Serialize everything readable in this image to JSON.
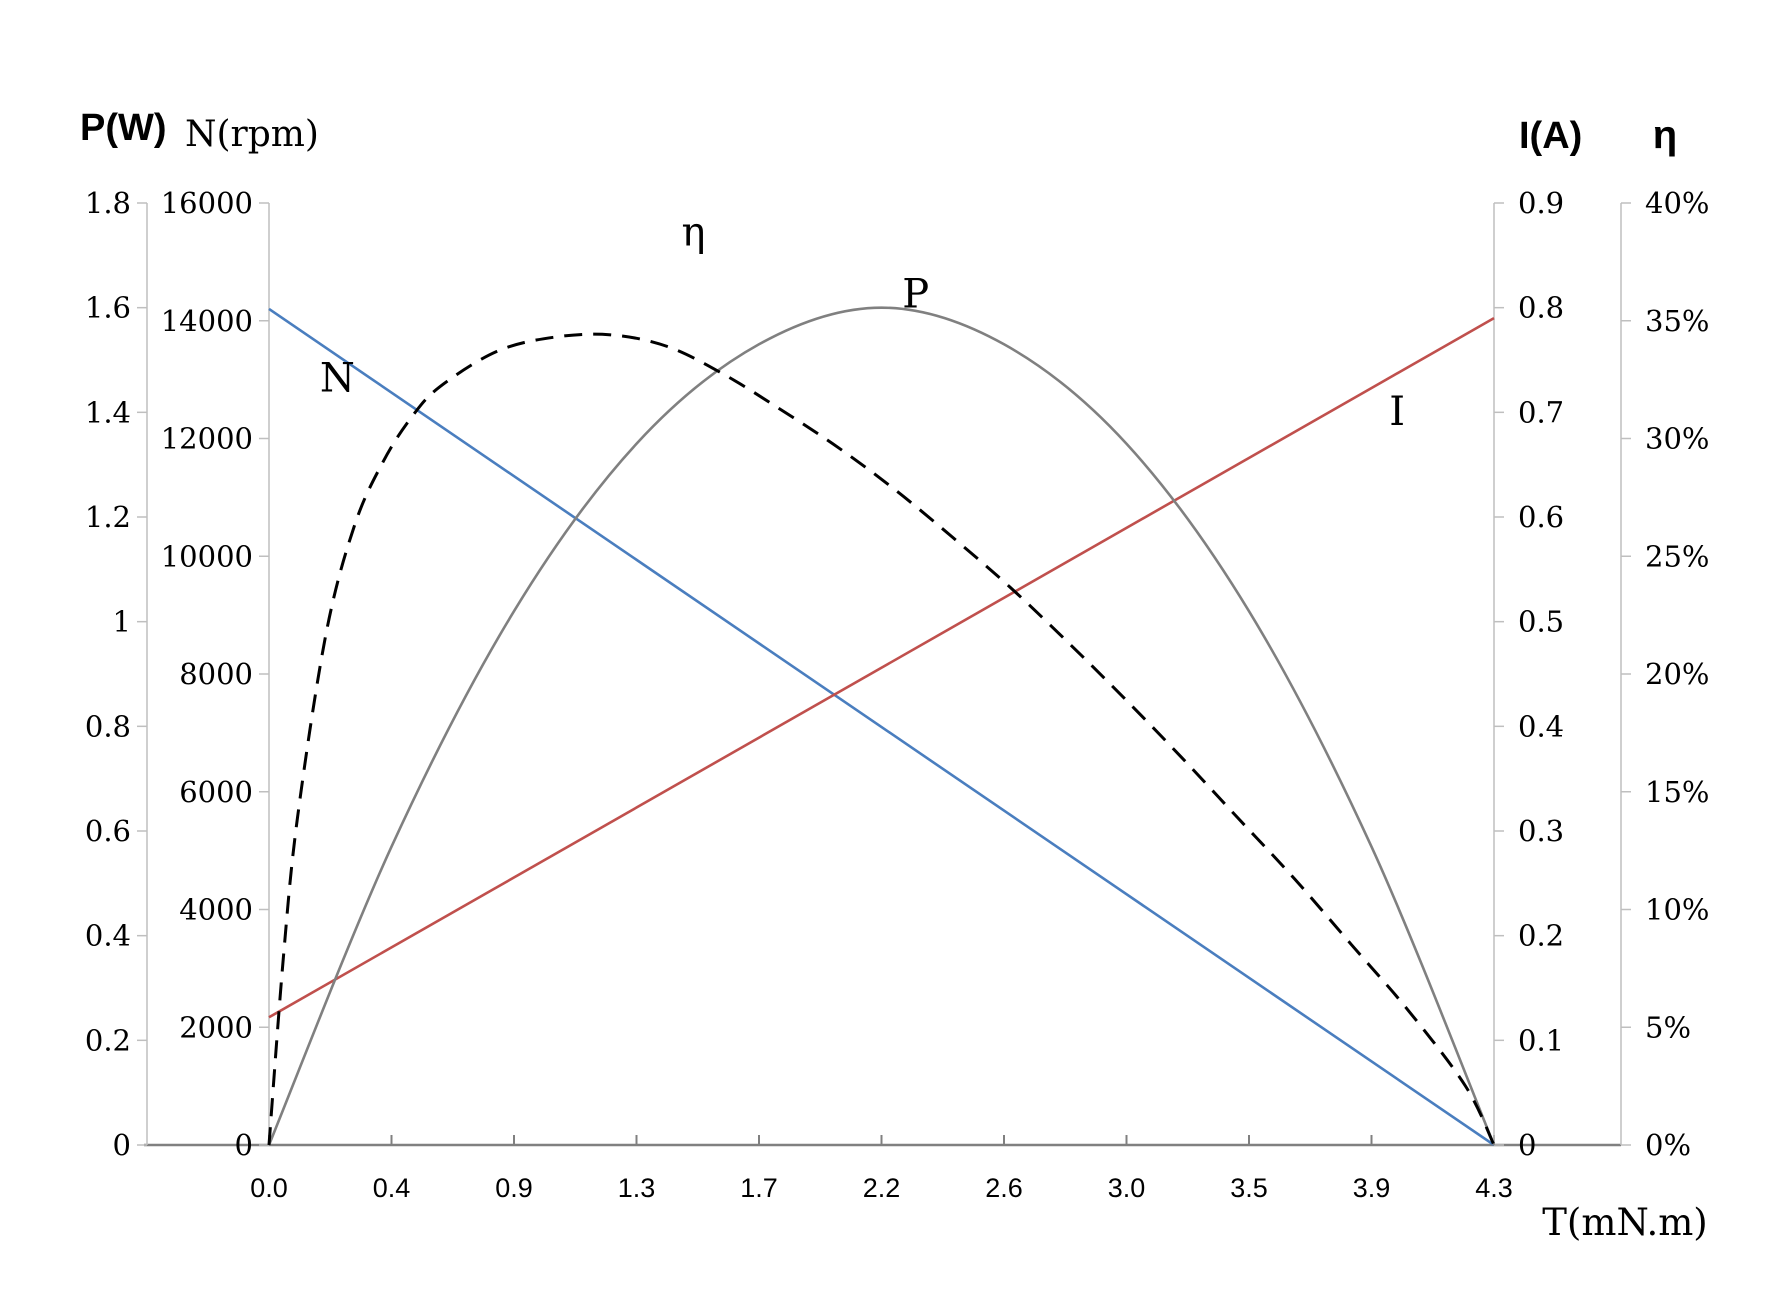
{
  "chart_data": {
    "type": "line",
    "x_tick_labels": [
      "0.0",
      "0.4",
      "0.9",
      "1.3",
      "1.7",
      "2.2",
      "2.6",
      "3.0",
      "3.5",
      "3.9",
      "4.3"
    ],
    "xlabel": "T(mN.m)",
    "xlim": [
      0,
      4.3
    ],
    "axes": {
      "p": {
        "label": "P(W)",
        "range": [
          0,
          1.8
        ],
        "ticks": [
          "0",
          "0.2",
          "0.4",
          "0.6",
          "0.8",
          "1",
          "1.2",
          "1.4",
          "1.6",
          "1.8"
        ]
      },
      "n": {
        "label": "N(rpm)",
        "range": [
          0,
          16000
        ],
        "ticks": [
          "0",
          "2000",
          "4000",
          "6000",
          "8000",
          "10000",
          "12000",
          "14000",
          "16000"
        ]
      },
      "i": {
        "label": "I(A)",
        "range": [
          0,
          0.9
        ],
        "ticks": [
          "0",
          "0.1",
          "0.2",
          "0.3",
          "0.4",
          "0.5",
          "0.6",
          "0.7",
          "0.8",
          "0.9"
        ]
      },
      "eta": {
        "label": "η",
        "range": [
          0,
          0.4
        ],
        "ticks": [
          "0%",
          "5%",
          "10%",
          "15%",
          "20%",
          "25%",
          "30%",
          "35%",
          "40%"
        ]
      }
    },
    "series": [
      {
        "name": "N",
        "axis": "n",
        "color": "#4a7ebf",
        "dash": false,
        "x": [
          0,
          4.3
        ],
        "y": [
          14200,
          0
        ]
      },
      {
        "name": "I",
        "axis": "i",
        "color": "#c0504d",
        "dash": false,
        "x": [
          0,
          4.3
        ],
        "y": [
          0.122,
          0.79
        ]
      },
      {
        "name": "P",
        "axis": "p",
        "color": "#808080",
        "dash": false,
        "x": [
          0,
          0.43,
          0.86,
          1.29,
          1.72,
          2.15,
          2.58,
          3.01,
          3.44,
          3.87,
          4.3
        ],
        "y": [
          0,
          0.57,
          1.02,
          1.34,
          1.53,
          1.6,
          1.53,
          1.34,
          1.02,
          0.57,
          0
        ]
      },
      {
        "name": "η",
        "axis": "eta",
        "color": "#000000",
        "dash": true,
        "x": [
          0,
          0.05,
          0.1,
          0.2,
          0.3,
          0.4,
          0.5,
          0.6,
          0.8,
          1.0,
          1.2,
          1.4,
          1.6,
          1.8,
          2.0,
          2.2,
          2.4,
          2.6,
          2.8,
          3.0,
          3.2,
          3.4,
          3.6,
          3.8,
          4.0,
          4.2,
          4.3
        ],
        "y": [
          0,
          0.079,
          0.139,
          0.217,
          0.263,
          0.29,
          0.309,
          0.322,
          0.337,
          0.343,
          0.344,
          0.339,
          0.327,
          0.312,
          0.296,
          0.278,
          0.258,
          0.237,
          0.214,
          0.19,
          0.165,
          0.139,
          0.113,
          0.085,
          0.057,
          0.025,
          0
        ]
      }
    ],
    "curve_labels": [
      {
        "text": "N",
        "x": 0.24,
        "y": 12800,
        "axis": "n"
      },
      {
        "text": "η",
        "x": 1.49,
        "y": 0.382,
        "axis": "eta"
      },
      {
        "text": "P",
        "x": 2.27,
        "y": 1.6,
        "axis": "p"
      },
      {
        "text": "I",
        "x": 3.96,
        "y": 0.688,
        "axis": "i"
      }
    ]
  }
}
